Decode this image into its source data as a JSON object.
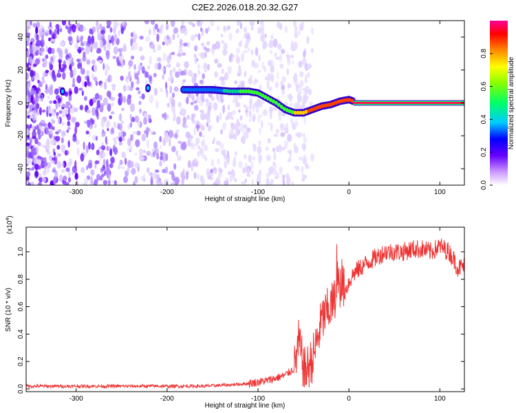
{
  "title": "C2E2.2026.018.20.32.G27",
  "chart_data": [
    {
      "type": "heatmap",
      "xlabel": "Height of straight line (km)",
      "ylabel": "Frequency (Hz)",
      "xlim": [
        -355,
        127
      ],
      "ylim": [
        -50,
        50
      ],
      "xticks": [
        -300,
        -200,
        -100,
        0,
        100
      ],
      "yticks": [
        -40,
        -20,
        0,
        20,
        40
      ],
      "xtick_labels": [
        "-300",
        "-200",
        "-100",
        "0",
        "100"
      ],
      "ytick_labels": [
        "-40",
        "-20",
        "0",
        "20",
        "40"
      ],
      "colorbar": {
        "label": "Normalized spectral amplitude",
        "range": [
          0,
          1
        ],
        "ticks": [
          0.0,
          0.2,
          0.4,
          0.6,
          0.8
        ],
        "tick_labels": [
          "0.0",
          "0.2",
          "0.4",
          "0.6",
          "0.8"
        ],
        "colors": [
          "#ffffff",
          "#cc99ff",
          "#6600ff",
          "#0000ff",
          "#00ffff",
          "#00ff00",
          "#ffff00",
          "#ff8800",
          "#ff0000",
          "#ff00cc"
        ]
      },
      "ridge": {
        "x": [
          -315,
          -300,
          -220,
          -180,
          -150,
          -130,
          -110,
          -100,
          -90,
          -80,
          -70,
          -60,
          -50,
          -40,
          -30,
          -20,
          -10,
          0,
          10,
          50,
          100,
          127
        ],
        "y": [
          7,
          8,
          9,
          8,
          8,
          7,
          7,
          6,
          3,
          0,
          -4,
          -6,
          -6,
          -4,
          -2,
          -1,
          1,
          2,
          0,
          0,
          0,
          0
        ]
      },
      "noise_extent_x": [
        -355,
        -60
      ]
    },
    {
      "type": "line",
      "xlabel": "Height of straight line (km)",
      "ylabel": "SNR (10 * v/v)",
      "y_multiplier": "(x10",
      "y_multiplier_exp": "4",
      "y_multiplier_close": ")",
      "xlim": [
        -355,
        127
      ],
      "ylim": [
        -0.02,
        1.18
      ],
      "xticks": [
        -300,
        -200,
        -100,
        0,
        100
      ],
      "yticks": [
        0.0,
        0.2,
        0.4,
        0.6,
        0.8,
        1.0
      ],
      "xtick_labels": [
        "-300",
        "-200",
        "-100",
        "0",
        "100"
      ],
      "ytick_labels": [
        "0.0",
        "0.2",
        "0.4",
        "0.6",
        "0.8",
        "1.0"
      ],
      "color": "#ee3333",
      "series": [
        {
          "name": "SNR",
          "x": [
            -355,
            -300,
            -250,
            -200,
            -160,
            -130,
            -110,
            -90,
            -70,
            -60,
            -55,
            -52,
            -48,
            -40,
            -35,
            -30,
            -25,
            -20,
            -15,
            -10,
            -8,
            -5,
            0,
            5,
            10,
            20,
            30,
            40,
            50,
            60,
            70,
            80,
            90,
            100,
            110,
            115,
            120,
            127
          ],
          "y": [
            0.02,
            0.02,
            0.02,
            0.02,
            0.02,
            0.03,
            0.04,
            0.06,
            0.1,
            0.15,
            0.35,
            0.22,
            0.12,
            0.22,
            0.35,
            0.5,
            0.55,
            0.6,
            0.65,
            0.75,
            0.8,
            0.7,
            0.78,
            0.84,
            0.87,
            0.92,
            0.96,
            1.0,
            1.0,
            1.0,
            1.02,
            1.02,
            1.0,
            1.04,
            1.0,
            0.95,
            0.88,
            0.9
          ]
        }
      ]
    }
  ]
}
